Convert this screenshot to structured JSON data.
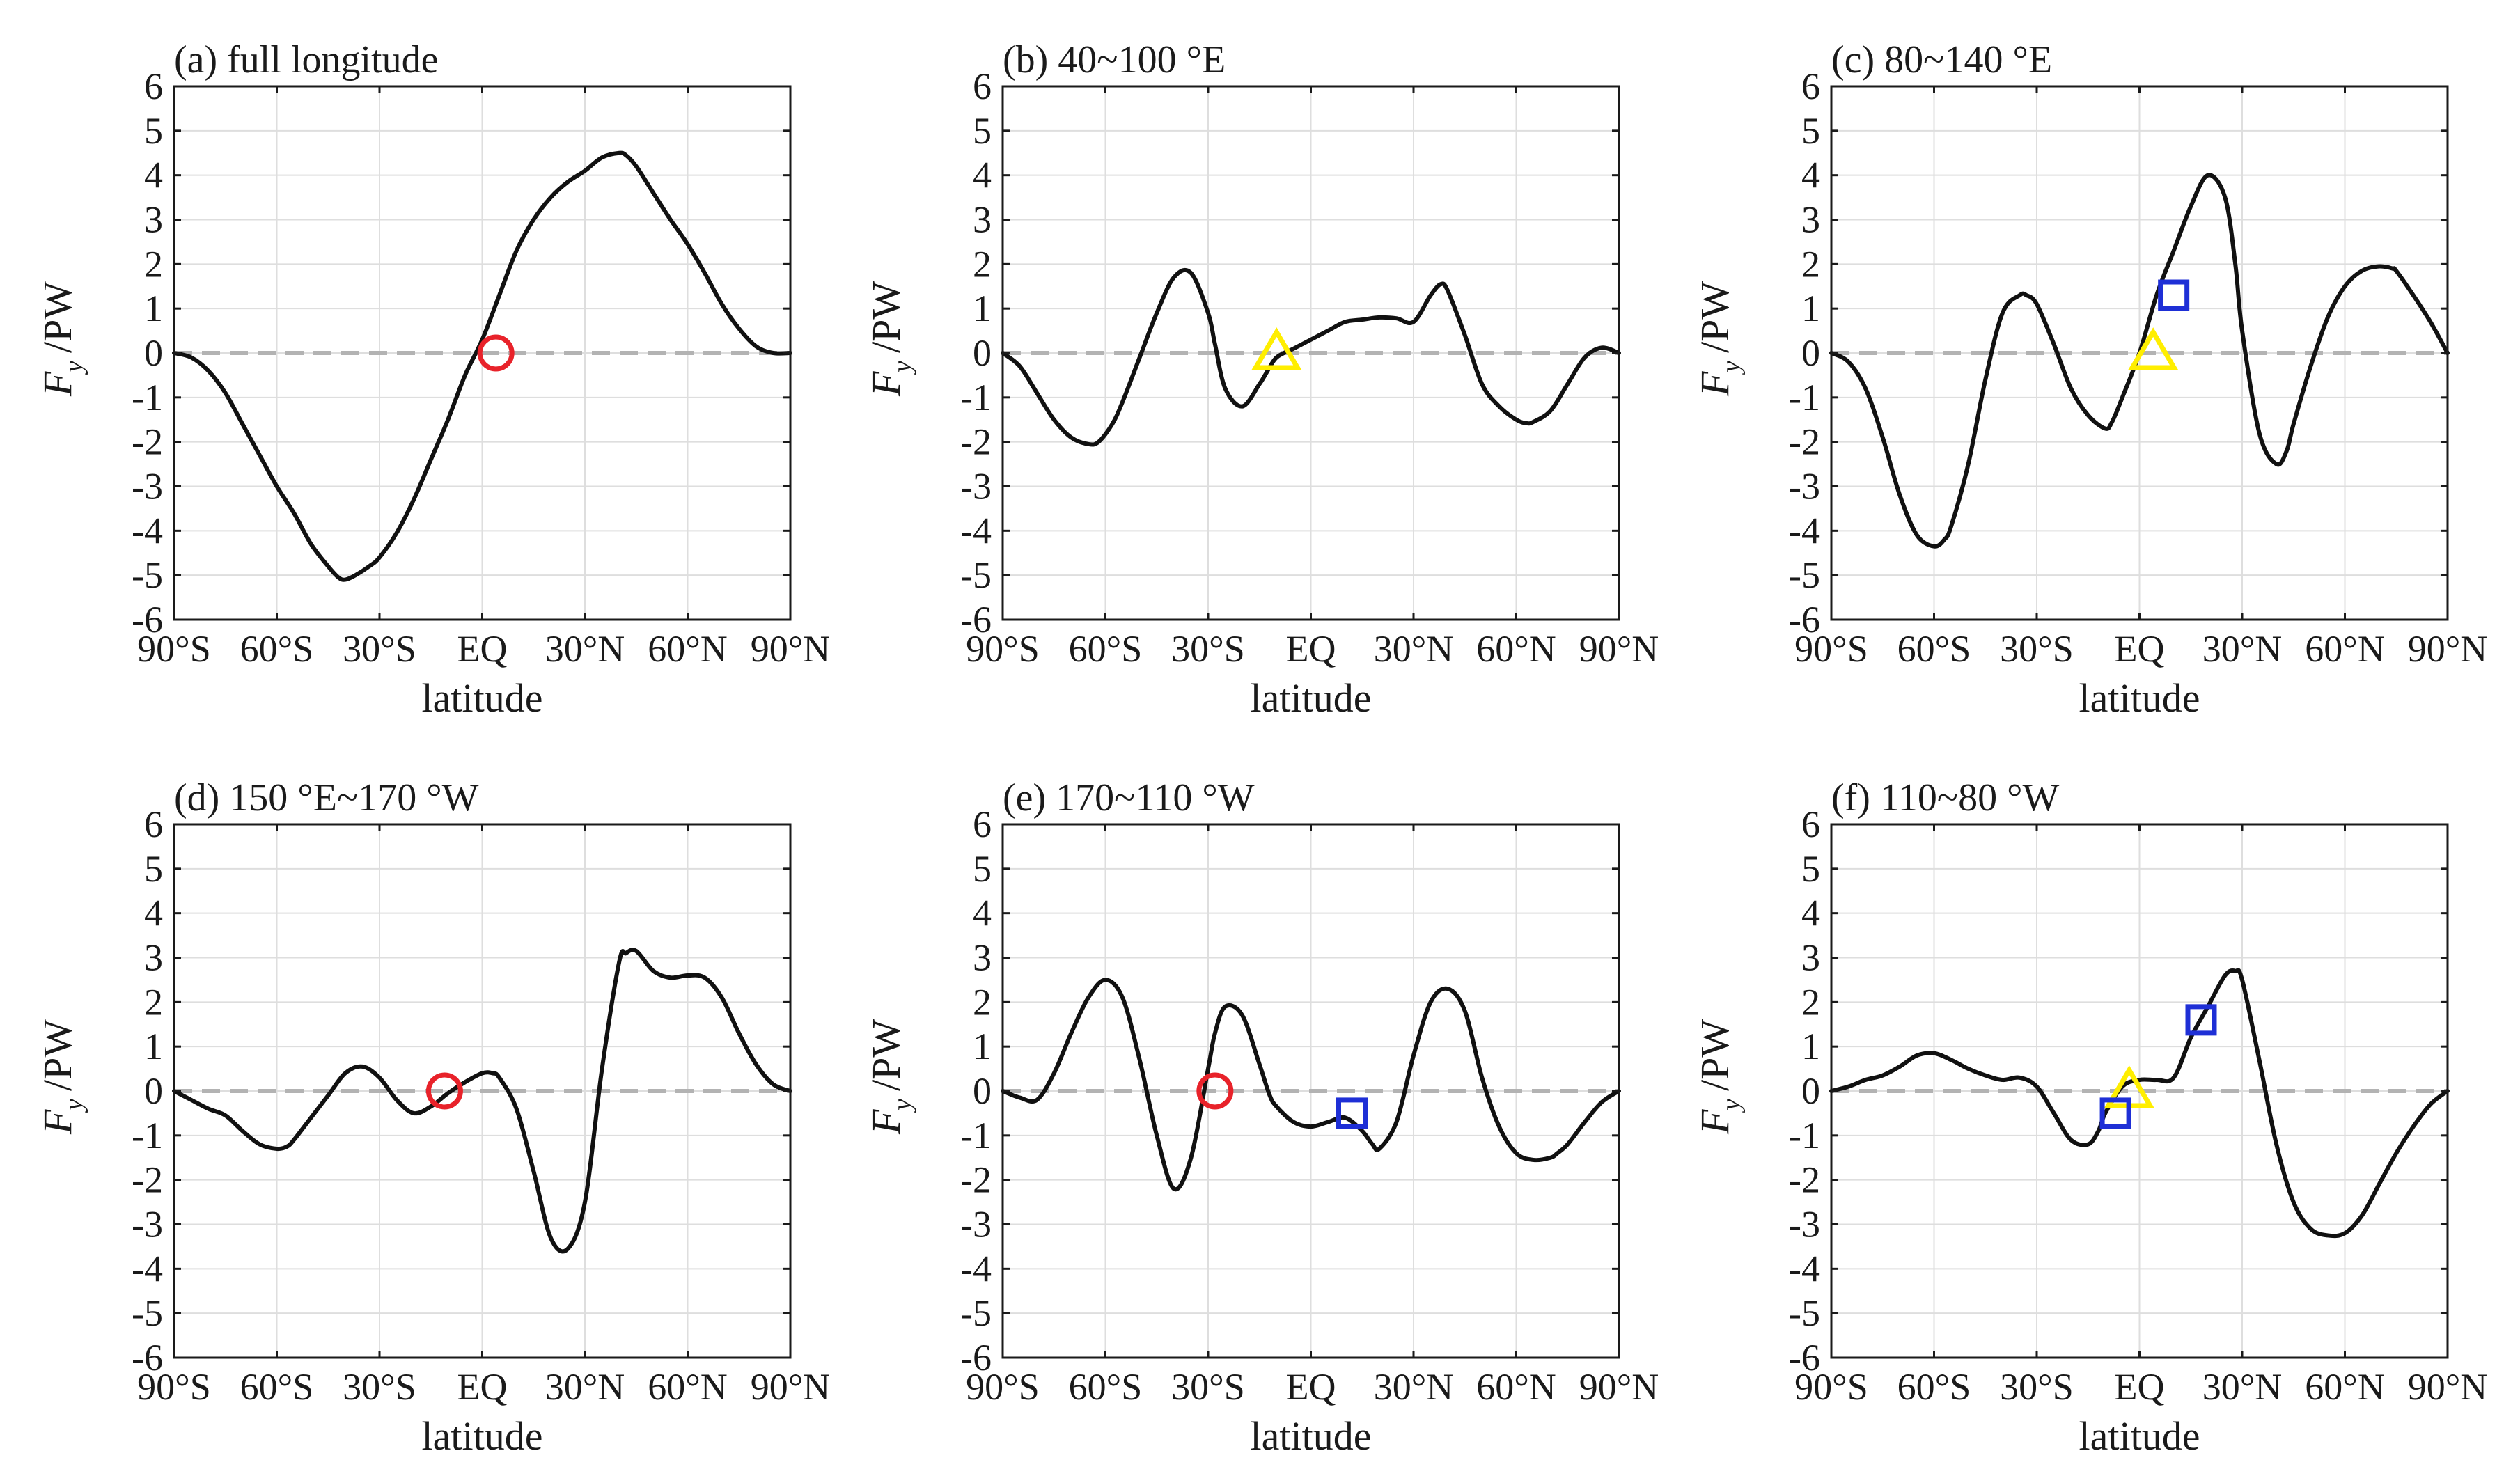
{
  "figure": {
    "x_ticks": [
      -90,
      -60,
      -30,
      0,
      30,
      60,
      90
    ],
    "x_tick_labels": [
      "90°S",
      "60°S",
      "30°S",
      "EQ",
      "30°N",
      "60°N",
      "90°N"
    ],
    "y_ticks": [
      -6,
      -5,
      -4,
      -3,
      -2,
      -1,
      0,
      1,
      2,
      3,
      4,
      5,
      6
    ],
    "y_tick_labels": [
      "-6",
      "-5",
      "-4",
      "-3",
      "-2",
      "-1",
      "0",
      "1",
      "2",
      "3",
      "4",
      "5",
      "6"
    ],
    "colors": {
      "curve": "#111111",
      "zero_line": "#b3b3b3",
      "grid": "#dedede",
      "circle": "#e8222a",
      "triangle": "#ffee00",
      "triangle_edge": "#c9b600",
      "square": "#1e2fd6"
    }
  },
  "chart_data": [
    {
      "type": "line",
      "title": "(a) full longitude",
      "xlabel": "latitude",
      "ylabel": "F_y /PW",
      "ylabel_main": "F",
      "ylabel_sub": "y",
      "ylabel_unit": "/PW",
      "xlim": [
        -90,
        90
      ],
      "ylim": [
        -6,
        6
      ],
      "grid": true,
      "zero_line": "dashed",
      "series": [
        {
          "x": [
            -90,
            -85,
            -80,
            -75,
            -70,
            -65,
            -60,
            -55,
            -50,
            -45,
            -42,
            -40,
            -37,
            -33,
            -30,
            -25,
            -20,
            -15,
            -10,
            -5,
            0,
            5,
            10,
            15,
            20,
            25,
            30,
            35,
            40,
            42,
            45,
            50,
            55,
            60,
            65,
            70,
            75,
            80,
            85,
            90
          ],
          "y": [
            0,
            -0.1,
            -0.4,
            -0.9,
            -1.6,
            -2.3,
            -3.0,
            -3.6,
            -4.3,
            -4.8,
            -5.05,
            -5.1,
            -5.0,
            -4.8,
            -4.6,
            -4.05,
            -3.3,
            -2.4,
            -1.5,
            -0.5,
            0.3,
            1.3,
            2.3,
            3.0,
            3.5,
            3.85,
            4.1,
            4.4,
            4.5,
            4.45,
            4.2,
            3.6,
            3.0,
            2.45,
            1.8,
            1.1,
            0.55,
            0.15,
            0,
            0
          ]
        }
      ],
      "markers": [
        {
          "shape": "circle",
          "x": 4,
          "y": 0
        }
      ]
    },
    {
      "type": "line",
      "title": "(b) 40~100 °E",
      "xlabel": "latitude",
      "ylabel": "F_y /PW",
      "ylabel_main": "F",
      "ylabel_sub": "y",
      "ylabel_unit": "/PW",
      "xlim": [
        -90,
        90
      ],
      "ylim": [
        -6,
        6
      ],
      "grid": true,
      "zero_line": "dashed",
      "series": [
        {
          "x": [
            -90,
            -85,
            -80,
            -75,
            -70,
            -65,
            -62,
            -58,
            -55,
            -50,
            -45,
            -40,
            -35,
            -30,
            -28,
            -25,
            -20,
            -15,
            -13,
            -10,
            -5,
            0,
            5,
            10,
            15,
            20,
            25,
            30,
            35,
            38,
            40,
            45,
            50,
            55,
            60,
            63,
            65,
            70,
            75,
            80,
            85,
            90
          ],
          "y": [
            0,
            -0.3,
            -0.9,
            -1.5,
            -1.9,
            -2.05,
            -2.0,
            -1.6,
            -1.1,
            -0.1,
            0.9,
            1.7,
            1.8,
            0.9,
            0.2,
            -0.8,
            -1.2,
            -0.7,
            -0.45,
            -0.1,
            0.1,
            0.3,
            0.5,
            0.7,
            0.75,
            0.8,
            0.78,
            0.7,
            1.3,
            1.55,
            1.4,
            0.4,
            -0.7,
            -1.2,
            -1.5,
            -1.58,
            -1.55,
            -1.3,
            -0.7,
            -0.1,
            0.12,
            0
          ]
        }
      ],
      "markers": [
        {
          "shape": "triangle",
          "x": -10,
          "y": 0
        }
      ]
    },
    {
      "type": "line",
      "title": "(c) 80~140 °E",
      "xlabel": "latitude",
      "ylabel": "F_y /PW",
      "ylabel_main": "F",
      "ylabel_sub": "y",
      "ylabel_unit": "/PW",
      "xlim": [
        -90,
        90
      ],
      "ylim": [
        -6,
        6
      ],
      "grid": true,
      "zero_line": "dashed",
      "series": [
        {
          "x": [
            -90,
            -85,
            -80,
            -75,
            -70,
            -65,
            -60,
            -57,
            -55,
            -50,
            -45,
            -40,
            -35,
            -33,
            -30,
            -25,
            -20,
            -15,
            -10,
            -8,
            -5,
            0,
            5,
            10,
            15,
            20,
            25,
            28,
            30,
            35,
            40,
            43,
            45,
            50,
            55,
            60,
            65,
            70,
            74,
            75,
            80,
            85,
            90
          ],
          "y": [
            0,
            -0.2,
            -0.8,
            -1.9,
            -3.2,
            -4.1,
            -4.35,
            -4.2,
            -3.9,
            -2.5,
            -0.6,
            0.9,
            1.3,
            1.3,
            1.1,
            0.2,
            -0.8,
            -1.4,
            -1.7,
            -1.55,
            -1.0,
            0,
            1.3,
            2.3,
            3.3,
            4.0,
            3.5,
            2.0,
            0.5,
            -1.8,
            -2.5,
            -2.2,
            -1.6,
            -0.3,
            0.8,
            1.5,
            1.85,
            1.95,
            1.9,
            1.85,
            1.3,
            0.7,
            0
          ]
        }
      ],
      "markers": [
        {
          "shape": "triangle",
          "x": 4,
          "y": 0
        },
        {
          "shape": "square",
          "x": 10,
          "y": 1.3
        }
      ]
    },
    {
      "type": "line",
      "title": "(d) 150 °E~170 °W",
      "xlabel": "latitude",
      "ylabel": "F_y /PW",
      "ylabel_main": "F",
      "ylabel_sub": "y",
      "ylabel_unit": "/PW",
      "xlim": [
        -90,
        90
      ],
      "ylim": [
        -6,
        6
      ],
      "grid": true,
      "zero_line": "dashed",
      "series": [
        {
          "x": [
            -90,
            -85,
            -80,
            -75,
            -70,
            -65,
            -60,
            -57,
            -55,
            -50,
            -45,
            -40,
            -35,
            -30,
            -25,
            -20,
            -15,
            -10,
            -5,
            0,
            3,
            5,
            10,
            15,
            20,
            25,
            30,
            35,
            40,
            42,
            45,
            50,
            55,
            60,
            65,
            70,
            75,
            80,
            85,
            90
          ],
          "y": [
            0,
            -0.2,
            -0.4,
            -0.55,
            -0.9,
            -1.2,
            -1.3,
            -1.25,
            -1.1,
            -0.6,
            -0.1,
            0.4,
            0.55,
            0.3,
            -0.2,
            -0.5,
            -0.35,
            -0.05,
            0.2,
            0.4,
            0.4,
            0.3,
            -0.4,
            -1.8,
            -3.3,
            -3.55,
            -2.5,
            0.5,
            2.9,
            3.1,
            3.15,
            2.7,
            2.55,
            2.6,
            2.55,
            2.1,
            1.3,
            0.6,
            0.15,
            0
          ]
        }
      ],
      "markers": [
        {
          "shape": "circle",
          "x": -11,
          "y": 0
        }
      ]
    },
    {
      "type": "line",
      "title": "(e) 170~110 °W",
      "xlabel": "latitude",
      "ylabel": "F_y /PW",
      "ylabel_main": "F",
      "ylabel_sub": "y",
      "ylabel_unit": "/PW",
      "xlim": [
        -90,
        90
      ],
      "ylim": [
        -6,
        6
      ],
      "grid": true,
      "zero_line": "dashed",
      "series": [
        {
          "x": [
            -90,
            -85,
            -80,
            -75,
            -70,
            -65,
            -60,
            -55,
            -50,
            -45,
            -40,
            -35,
            -30,
            -28,
            -25,
            -20,
            -15,
            -12,
            -10,
            -5,
            0,
            5,
            10,
            15,
            18,
            20,
            25,
            30,
            35,
            40,
            45,
            50,
            55,
            60,
            65,
            70,
            72,
            75,
            80,
            85,
            90
          ],
          "y": [
            0,
            -0.15,
            -0.2,
            0.4,
            1.3,
            2.1,
            2.5,
            2.1,
            0.7,
            -1.0,
            -2.2,
            -1.5,
            0.5,
            1.3,
            1.9,
            1.7,
            0.6,
            -0.1,
            -0.35,
            -0.7,
            -0.8,
            -0.7,
            -0.6,
            -0.9,
            -1.2,
            -1.3,
            -0.7,
            0.8,
            2.0,
            2.3,
            1.8,
            0.3,
            -0.8,
            -1.4,
            -1.55,
            -1.5,
            -1.4,
            -1.2,
            -0.7,
            -0.25,
            0
          ]
        }
      ],
      "markers": [
        {
          "shape": "circle",
          "x": -28,
          "y": 0
        },
        {
          "shape": "square",
          "x": 12,
          "y": -0.5
        }
      ]
    },
    {
      "type": "line",
      "title": "(f) 110~80 °W",
      "xlabel": "latitude",
      "ylabel": "F_y /PW",
      "ylabel_main": "F",
      "ylabel_sub": "y",
      "ylabel_unit": "/PW",
      "xlim": [
        -90,
        90
      ],
      "ylim": [
        -6,
        6
      ],
      "grid": true,
      "zero_line": "dashed",
      "series": [
        {
          "x": [
            -90,
            -85,
            -80,
            -75,
            -70,
            -65,
            -60,
            -55,
            -50,
            -45,
            -40,
            -35,
            -30,
            -25,
            -20,
            -15,
            -12,
            -10,
            -5,
            0,
            5,
            10,
            15,
            20,
            25,
            28,
            30,
            35,
            40,
            45,
            50,
            55,
            60,
            65,
            70,
            75,
            80,
            85,
            90
          ],
          "y": [
            0,
            0.1,
            0.25,
            0.35,
            0.55,
            0.8,
            0.85,
            0.7,
            0.5,
            0.35,
            0.25,
            0.3,
            0.1,
            -0.5,
            -1.1,
            -1.2,
            -0.9,
            -0.5,
            0.1,
            0.25,
            0.25,
            0.3,
            1.2,
            1.9,
            2.6,
            2.7,
            2.5,
            0.7,
            -1.2,
            -2.5,
            -3.1,
            -3.25,
            -3.2,
            -2.8,
            -2.1,
            -1.4,
            -0.8,
            -0.3,
            0
          ]
        }
      ],
      "markers": [
        {
          "shape": "triangle",
          "x": -3,
          "y": 0
        },
        {
          "shape": "square",
          "x": -7,
          "y": -0.5
        },
        {
          "shape": "square",
          "x": 18,
          "y": 1.6
        }
      ]
    }
  ]
}
